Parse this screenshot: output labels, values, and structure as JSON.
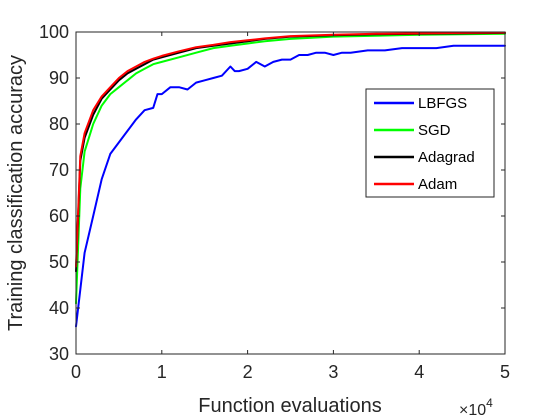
{
  "chart_data": {
    "type": "line",
    "xlabel": "Function evaluations",
    "ylabel": "Training classification accuracy",
    "x_multiplier_base": "×10",
    "x_multiplier_exp": "4",
    "xlim": [
      0,
      5
    ],
    "ylim": [
      30,
      100
    ],
    "xticks": [
      "0",
      "1",
      "2",
      "3",
      "4",
      "5"
    ],
    "yticks": [
      "30",
      "40",
      "50",
      "60",
      "70",
      "80",
      "90",
      "100"
    ],
    "grid": false,
    "legend_position": "right-middle",
    "series": [
      {
        "name": "LBFGS",
        "color": "#0000ff",
        "x": [
          0,
          0.05,
          0.1,
          0.2,
          0.3,
          0.4,
          0.5,
          0.6,
          0.7,
          0.8,
          0.9,
          0.95,
          1.0,
          1.1,
          1.2,
          1.3,
          1.4,
          1.5,
          1.6,
          1.7,
          1.8,
          1.85,
          1.9,
          2.0,
          2.1,
          2.2,
          2.3,
          2.4,
          2.5,
          2.6,
          2.7,
          2.8,
          2.9,
          3.0,
          3.1,
          3.2,
          3.4,
          3.6,
          3.8,
          4.0,
          4.2,
          4.4,
          4.6,
          4.8,
          5.0
        ],
        "y": [
          36,
          44,
          52,
          60,
          68,
          73.5,
          76,
          78.5,
          81,
          83,
          83.5,
          86.5,
          86.5,
          88,
          88,
          87.5,
          89,
          89.5,
          90,
          90.5,
          92.5,
          91.5,
          91.5,
          92,
          93.5,
          92.5,
          93.5,
          94,
          94,
          95,
          95,
          95.5,
          95.5,
          95,
          95.5,
          95.5,
          96,
          96,
          96.5,
          96.5,
          96.5,
          97,
          97,
          97,
          97
        ]
      },
      {
        "name": "SGD",
        "color": "#00ff00",
        "x": [
          0,
          0.05,
          0.1,
          0.2,
          0.3,
          0.4,
          0.5,
          0.6,
          0.7,
          0.8,
          0.9,
          1.0,
          1.2,
          1.4,
          1.6,
          1.8,
          2.0,
          2.2,
          2.5,
          3.0,
          3.5,
          4.0,
          4.5,
          5.0
        ],
        "y": [
          41,
          66,
          74,
          80,
          84,
          86.5,
          88,
          89.5,
          91,
          92,
          93,
          93.5,
          94.5,
          95.5,
          96.5,
          97,
          97.5,
          98,
          98.5,
          99,
          99.2,
          99.4,
          99.5,
          99.6
        ]
      },
      {
        "name": "Adagrad",
        "color": "#000000",
        "x": [
          0,
          0.05,
          0.1,
          0.2,
          0.3,
          0.4,
          0.5,
          0.6,
          0.7,
          0.8,
          0.9,
          1.0,
          1.2,
          1.4,
          1.6,
          1.8,
          2.0,
          2.2,
          2.5,
          3.0,
          3.5,
          4.0,
          4.5,
          5.0
        ],
        "y": [
          48,
          72,
          77,
          82,
          85.5,
          87.5,
          89.5,
          91,
          92,
          93,
          94,
          94.5,
          95.5,
          96.5,
          97,
          97.5,
          98,
          98.5,
          99,
          99.3,
          99.5,
          99.6,
          99.7,
          99.8
        ]
      },
      {
        "name": "Adam",
        "color": "#ff0000",
        "x": [
          0,
          0.05,
          0.1,
          0.2,
          0.3,
          0.4,
          0.5,
          0.6,
          0.7,
          0.8,
          0.9,
          1.0,
          1.2,
          1.4,
          1.6,
          1.8,
          2.0,
          2.2,
          2.5,
          3.0,
          3.5,
          4.0,
          4.5,
          5.0
        ],
        "y": [
          49,
          73,
          78,
          83,
          86,
          88,
          90,
          91.5,
          92.5,
          93.5,
          94.2,
          94.8,
          95.8,
          96.7,
          97.2,
          97.8,
          98.2,
          98.6,
          99.1,
          99.4,
          99.6,
          99.7,
          99.8,
          99.9
        ]
      }
    ]
  }
}
